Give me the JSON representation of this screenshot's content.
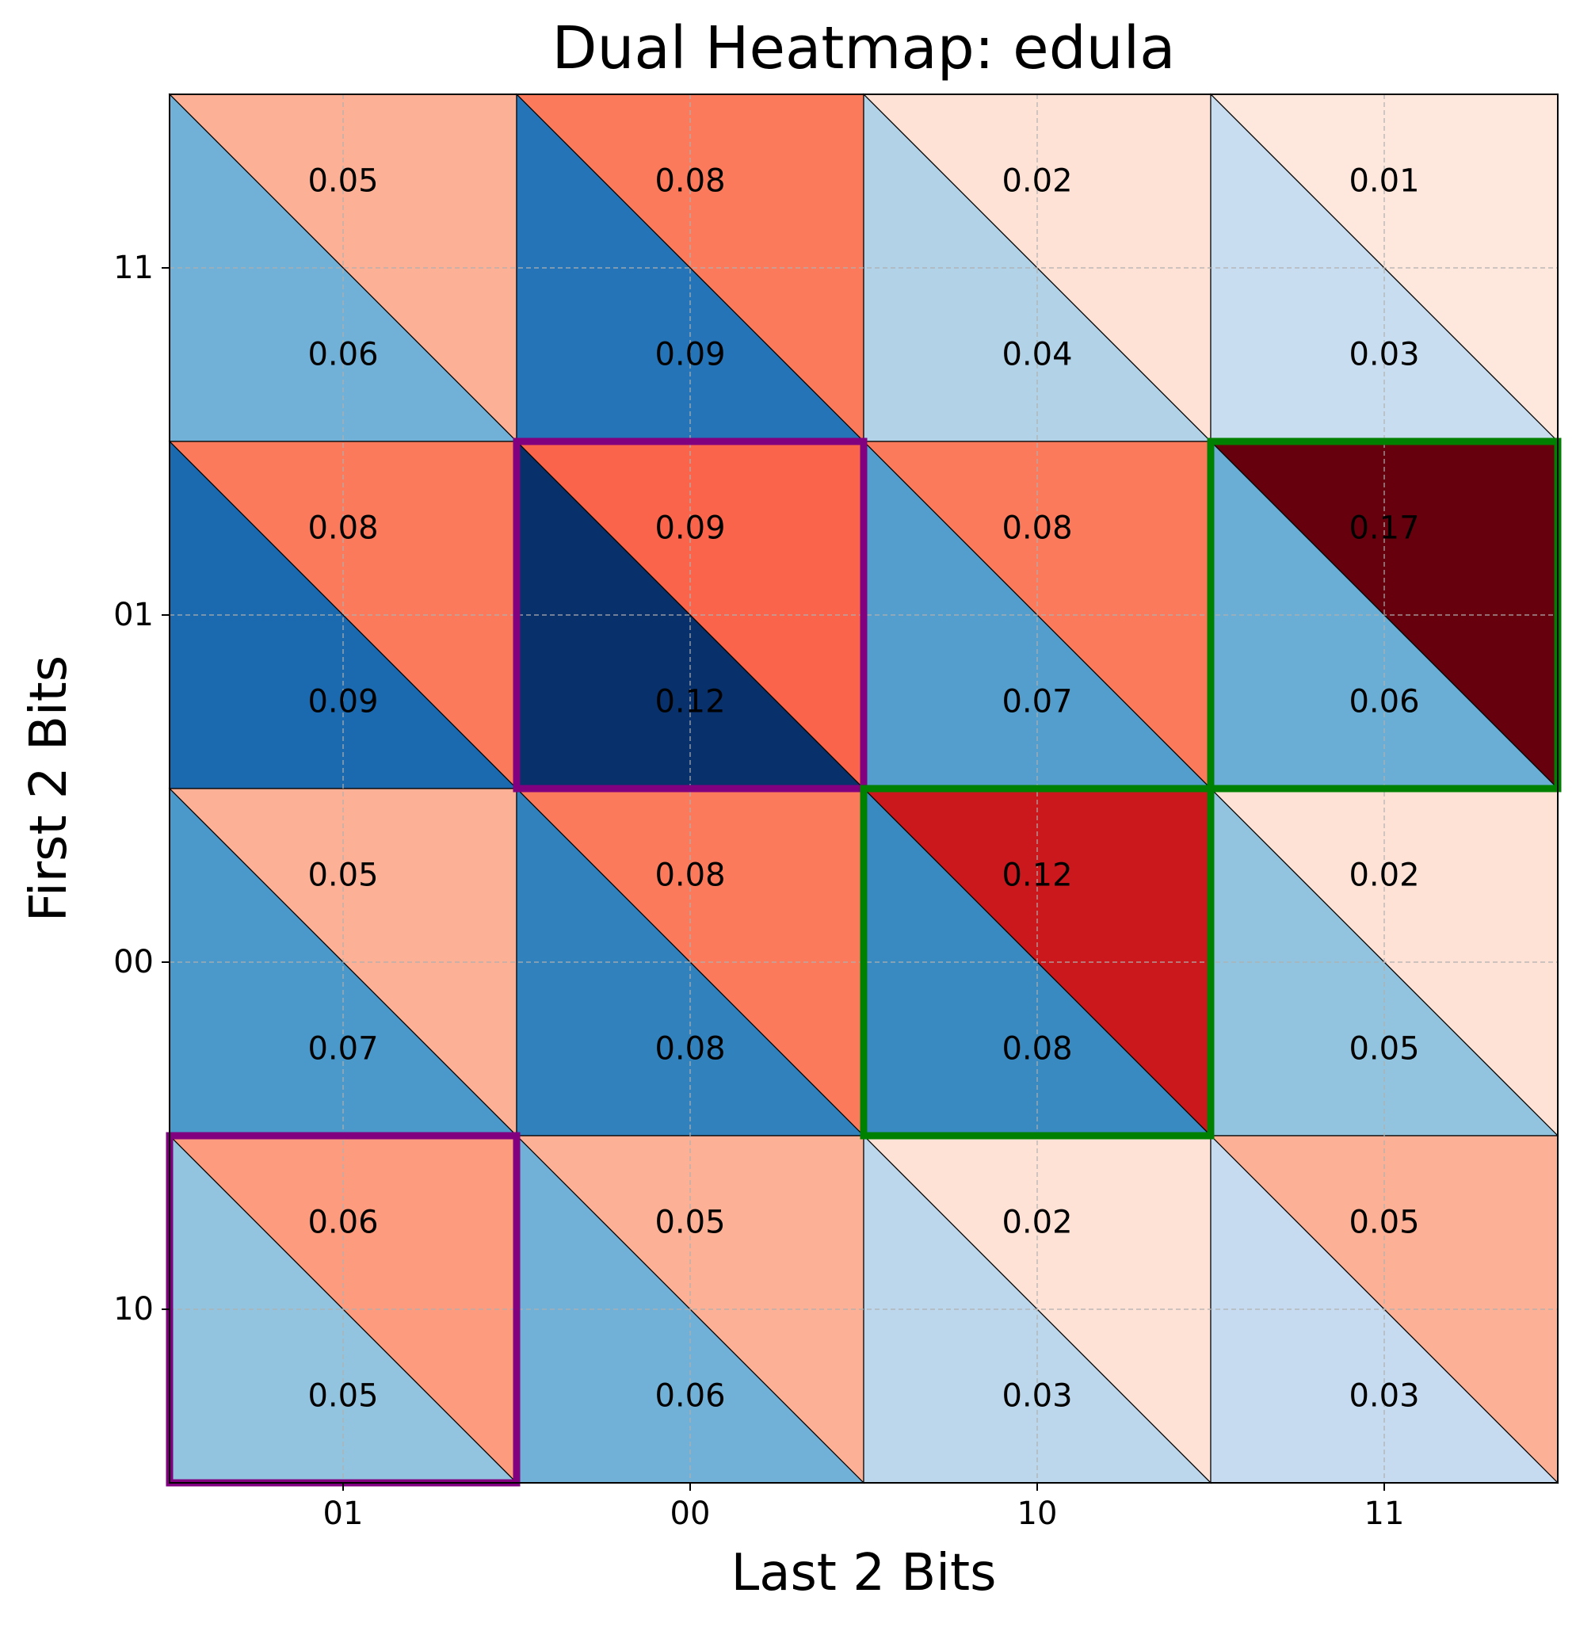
{
  "chart_data": {
    "type": "heatmap",
    "title": "Dual Heatmap: edula",
    "xlabel": "Last 2 Bits",
    "ylabel": "First 2 Bits",
    "x_categories": [
      "01",
      "00",
      "10",
      "11"
    ],
    "y_categories": [
      "11",
      "01",
      "00",
      "10"
    ],
    "grid": true,
    "series": [
      {
        "part": "upper-right triangle",
        "colormap": "Reds",
        "values": [
          [
            0.05,
            0.08,
            0.02,
            0.01
          ],
          [
            0.08,
            0.09,
            0.08,
            0.17
          ],
          [
            0.05,
            0.08,
            0.12,
            0.02
          ],
          [
            0.06,
            0.05,
            0.02,
            0.05
          ]
        ],
        "colors": [
          [
            "#fcb095",
            "#fb7a5b",
            "#fee2d6",
            "#fee7dc"
          ],
          [
            "#fb7a5b",
            "#f9644a",
            "#fb7a5b",
            "#67000d"
          ],
          [
            "#fcb095",
            "#fb7a5b",
            "#cb181d",
            "#fee2d6"
          ],
          [
            "#fc9b7d",
            "#fcb095",
            "#fee2d6",
            "#fcb095"
          ]
        ]
      },
      {
        "part": "lower-left triangle",
        "colormap": "Blues",
        "values": [
          [
            0.06,
            0.09,
            0.04,
            0.03
          ],
          [
            0.09,
            0.12,
            0.07,
            0.06
          ],
          [
            0.07,
            0.08,
            0.08,
            0.05
          ],
          [
            0.05,
            0.06,
            0.03,
            0.03
          ]
        ],
        "colors": [
          [
            "#71b0d7",
            "#2474b7",
            "#b2d2e8",
            "#c9ddf0"
          ],
          [
            "#1b69af",
            "#08306b",
            "#539ecd",
            "#6aaed6"
          ],
          [
            "#4b98ca",
            "#3181bd",
            "#3a8ac2",
            "#92c4df"
          ],
          [
            "#92c4df",
            "#71b0d7",
            "#bcd7eb",
            "#c6dbef"
          ]
        ]
      }
    ],
    "highlights": [
      {
        "row": "01",
        "col": "00",
        "color": "#800080"
      },
      {
        "row": "10",
        "col": "01",
        "color": "#800080"
      },
      {
        "row": "01",
        "col": "11",
        "color": "#008000"
      },
      {
        "row": "00",
        "col": "10",
        "color": "#008000"
      }
    ]
  }
}
